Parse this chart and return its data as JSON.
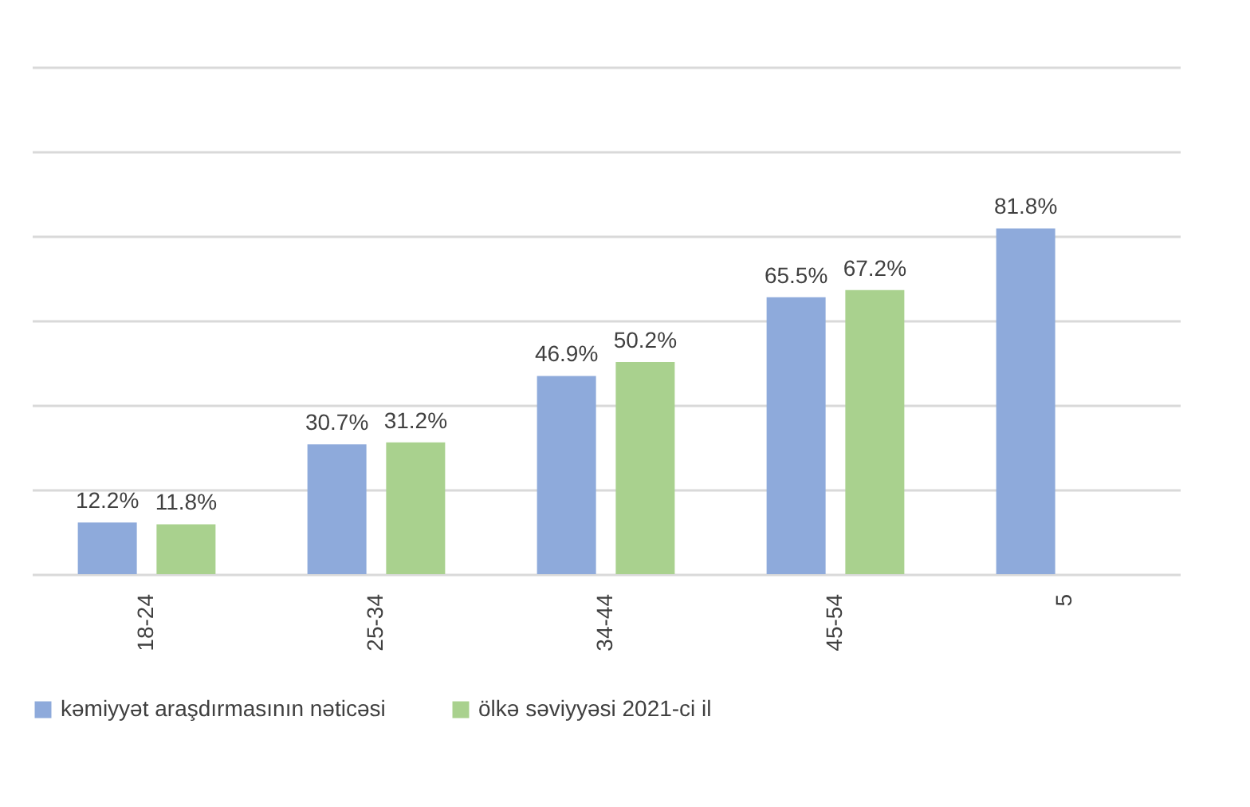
{
  "chart_data": {
    "type": "bar",
    "categories": [
      "18-24",
      "25-34",
      "34-44",
      "45-54",
      "5"
    ],
    "series": [
      {
        "name": "kəmiyyət araşdırmasının nəticəsi",
        "color": "#8eaadb",
        "values": [
          12.2,
          30.7,
          46.9,
          65.5,
          81.8
        ],
        "value_labels": [
          "12.2%",
          "30.7%",
          "46.9%",
          "65.5%",
          "81.8%"
        ]
      },
      {
        "name": "ölkə səviyyəsi 2021-ci il",
        "color": "#a9d18e",
        "values": [
          11.8,
          31.2,
          50.2,
          67.2,
          null
        ],
        "value_labels": [
          "11.8%",
          "31.2%",
          "50.2%",
          "67.2%",
          null
        ]
      }
    ],
    "ylim": [
      0,
      120
    ],
    "yticks": [
      {
        "value": 0,
        "label": null
      },
      {
        "value": 20,
        "label": null
      },
      {
        "value": 40,
        "label": null
      },
      {
        "value": 60,
        "label": null
      },
      {
        "value": 80,
        "label": null
      },
      {
        "value": 100,
        "label": null
      },
      {
        "value": 120,
        "label": null
      }
    ],
    "tick_labels": "x",
    "grid": "y",
    "legend": "bottom"
  }
}
